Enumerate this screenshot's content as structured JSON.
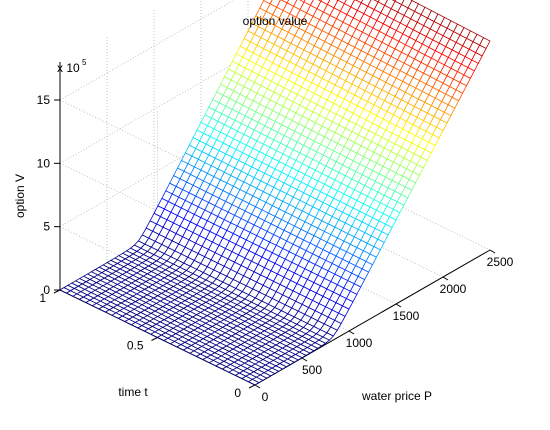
{
  "chart_data": {
    "type": "surface",
    "title": "option value",
    "xlabel": "water price P",
    "ylabel": "time t",
    "zlabel": "option V",
    "z_multiplier_label": "x 10",
    "z_multiplier_exponent": "5",
    "x_range": [
      0,
      2500
    ],
    "y_range": [
      0,
      1
    ],
    "z_range": [
      0,
      1.8
    ],
    "x_ticks": [
      "0",
      "500",
      "1000",
      "1500",
      "2000",
      "2500"
    ],
    "y_ticks": [
      "0",
      "0.5",
      "1"
    ],
    "z_ticks": [
      "0",
      "5",
      "10",
      "15"
    ],
    "surface_function": "V(P,t) = max(P - 800, 0) with smooth transition; approx 0 for P < 800, rising linearly to ~16.7e5 at P = 2500, nearly constant in t",
    "sample_points": [
      {
        "P": 0,
        "t": 0,
        "V_x1e5": 0
      },
      {
        "P": 800,
        "t": 0,
        "V_x1e5": 0.2
      },
      {
        "P": 1000,
        "t": 0,
        "V_x1e5": 2.0
      },
      {
        "P": 1500,
        "t": 0,
        "V_x1e5": 7.0
      },
      {
        "P": 2000,
        "t": 0,
        "V_x1e5": 12.0
      },
      {
        "P": 2500,
        "t": 0,
        "V_x1e5": 17.0
      },
      {
        "P": 2500,
        "t": 1,
        "V_x1e5": 17.0
      }
    ],
    "grid": true,
    "colormap": "jet"
  }
}
